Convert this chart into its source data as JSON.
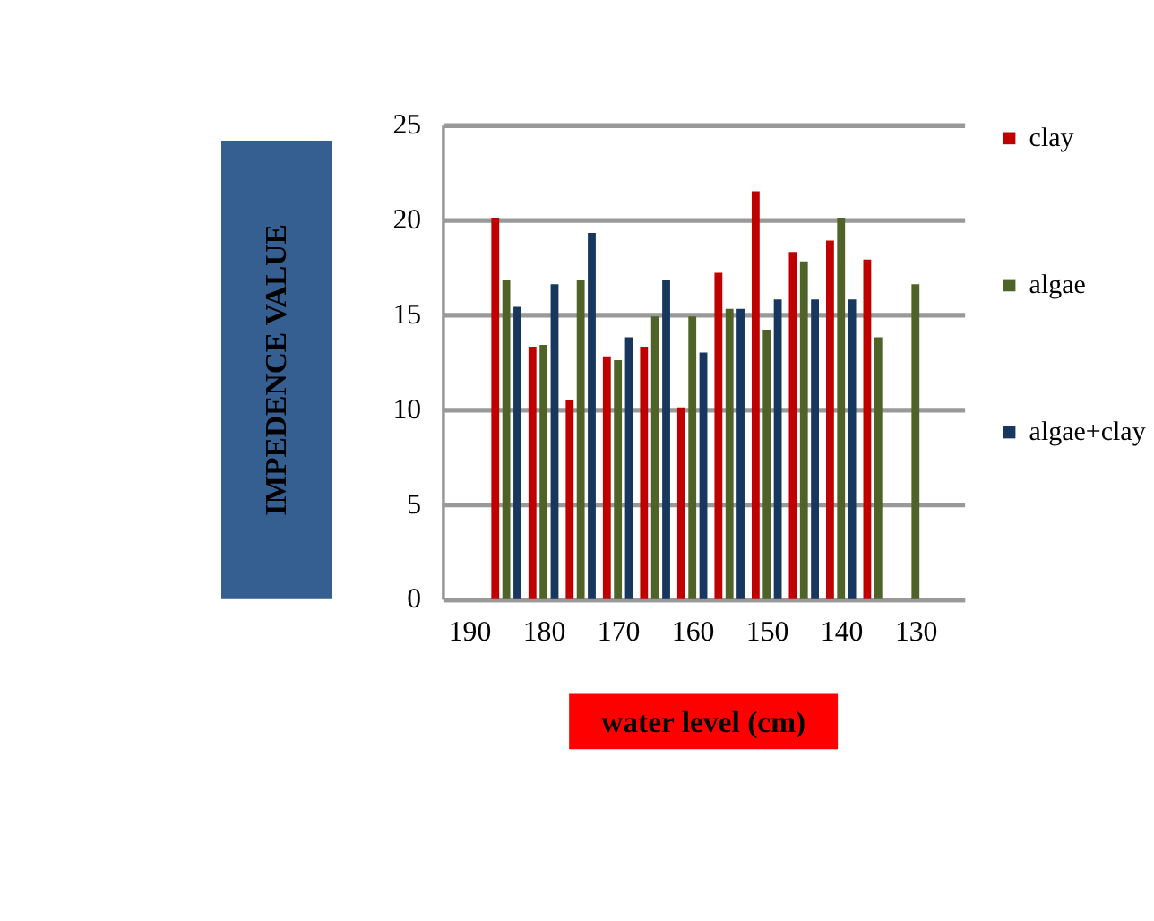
{
  "chart_data": {
    "type": "bar",
    "xlabel": "water level (cm)",
    "ylabel": "IMPEDENCE VALUE",
    "x": [
      185,
      180,
      175,
      170,
      165,
      160,
      155,
      150,
      145,
      140,
      135,
      130
    ],
    "series": [
      {
        "name": "clay",
        "color": "#c00000",
        "values": [
          20.1,
          13.3,
          10.5,
          12.8,
          13.3,
          10.1,
          17.2,
          21.5,
          18.3,
          18.9,
          17.9,
          null
        ]
      },
      {
        "name": "algae",
        "color": "#4f6228",
        "values": [
          16.8,
          13.4,
          16.8,
          12.6,
          14.9,
          14.9,
          15.3,
          14.2,
          17.8,
          20.1,
          13.8,
          16.6
        ]
      },
      {
        "name": "algae+clay",
        "color": "#17375e",
        "values": [
          15.4,
          16.6,
          19.3,
          13.8,
          16.8,
          13.0,
          15.3,
          15.8,
          15.8,
          15.8,
          null,
          null
        ]
      }
    ],
    "xlim": [
      192.5,
      124.5
    ],
    "xticks": [
      190,
      180,
      170,
      160,
      150,
      140,
      130
    ],
    "ylim": [
      0,
      25
    ],
    "yticks": [
      0,
      5,
      10,
      15,
      20,
      25
    ],
    "grid": "y",
    "legend": "right"
  }
}
